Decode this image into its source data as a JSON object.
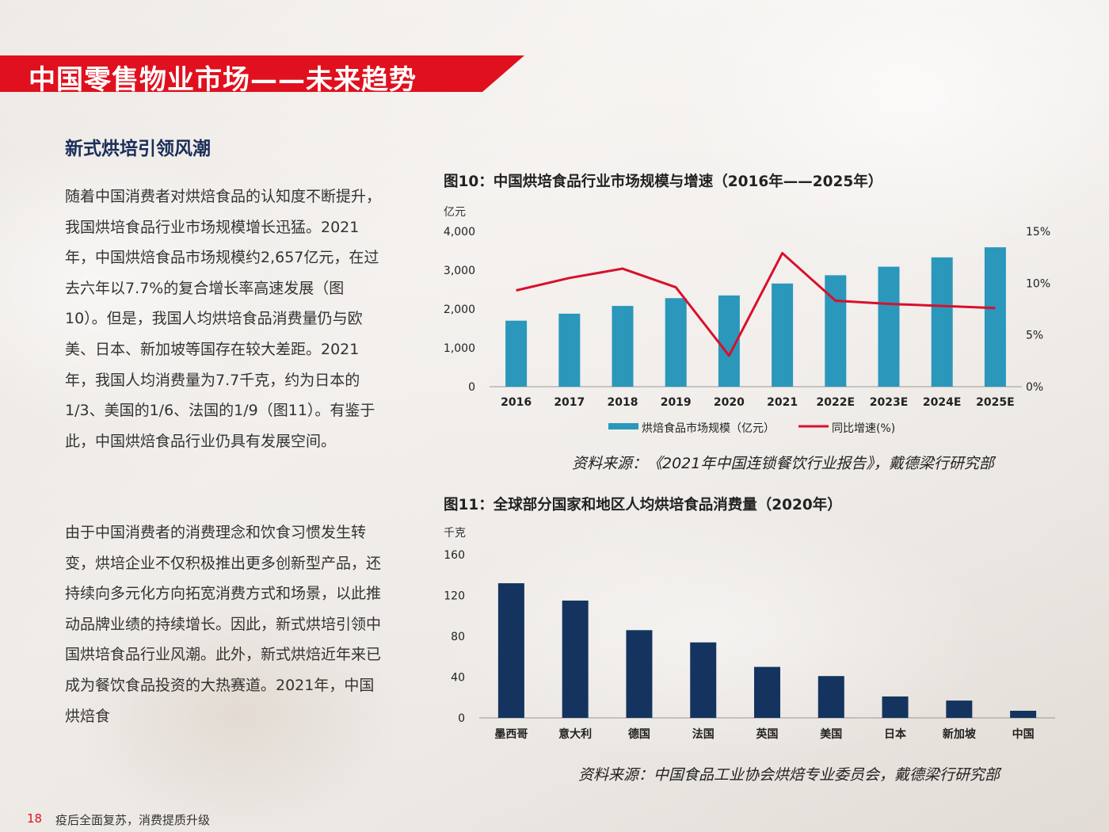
{
  "header": {
    "title": "中国零售物业市场——未来趋势",
    "subtitle": "新式烘培引领风潮"
  },
  "body": {
    "para1": "随着中国消费者对烘焙食品的认知度不断提升，我国烘培食品行业市场规模增长迅猛。2021年，中国烘焙食品市场规模约2,657亿元，在过去六年以7.7%的复合增长率高速发展（图10）。但是，我国人均烘培食品消费量仍与欧美、日本、新加坡等国存在较大差距。2021年，我国人均消费量为7.7千克，约为日本的1/3、美国的1/6、法国的1/9（图11）。有鉴于此，中国烘焙食品行业仍具有发展空间。",
    "para2": "由于中国消费者的消费理念和饮食习惯发生转变，烘培企业不仅积极推出更多创新型产品，还持续向多元化方向拓宽消费方式和场景，以此推动品牌业绩的持续增长。因此，新式烘培引领中国烘培食品行业风潮。此外，新式烘焙近年来已成为餐饮食品投资的大热赛道。2021年，中国烘焙食"
  },
  "fig10": {
    "title": "图10：中国烘培食品行业市场规模与增速（2016年——2025年）",
    "unit": "亿元",
    "source": "资料来源：《2021年中国连锁餐饮行业报告》，戴德梁行研究部"
  },
  "fig11": {
    "title": "图11：全球部分国家和地区人均烘培食品消费量（2020年）",
    "unit": "千克",
    "source": "资料来源：中国食品工业协会烘焙专业委员会，戴德梁行研究部"
  },
  "footer": {
    "page": "18",
    "text": "疫后全面复苏，消费提质升级"
  },
  "colors": {
    "accent_red": "#e0101e",
    "bar_teal": "#2a97bb",
    "line_red": "#d8102c",
    "bar_navy": "#14345f"
  },
  "chart_data": [
    {
      "type": "bar",
      "categories": [
        "2016",
        "2017",
        "2018",
        "2019",
        "2020",
        "2021",
        "2022E",
        "2023E",
        "2024E",
        "2025E"
      ],
      "series": [
        {
          "name": "烘焙食品市场规模（亿元）",
          "type": "bar",
          "axis": "left",
          "values": [
            1700,
            1880,
            2080,
            2280,
            2350,
            2657,
            2870,
            3090,
            3330,
            3590
          ]
        },
        {
          "name": "同比增速(%)",
          "type": "line",
          "axis": "right",
          "values": [
            9.3,
            10.5,
            11.4,
            9.6,
            3.0,
            12.9,
            8.3,
            8.0,
            7.8,
            7.6
          ]
        }
      ],
      "yticks_left": [
        "0",
        "1,000",
        "2,000",
        "3,000",
        "4,000"
      ],
      "ylim_left": [
        0,
        4000
      ],
      "yticks_right": [
        "0%",
        "5%",
        "10%",
        "15%"
      ],
      "ylim_right": [
        0,
        15
      ],
      "ylabel": "亿元",
      "legend": "bottom"
    },
    {
      "type": "bar",
      "categories": [
        "墨西哥",
        "意大利",
        "德国",
        "法国",
        "英国",
        "美国",
        "日本",
        "新加坡",
        "中国"
      ],
      "values": [
        132,
        115,
        86,
        74,
        50,
        41,
        21,
        17,
        7
      ],
      "yticks": [
        "0",
        "40",
        "80",
        "120",
        "160"
      ],
      "ylim": [
        0,
        160
      ],
      "ylabel": "千克"
    }
  ]
}
